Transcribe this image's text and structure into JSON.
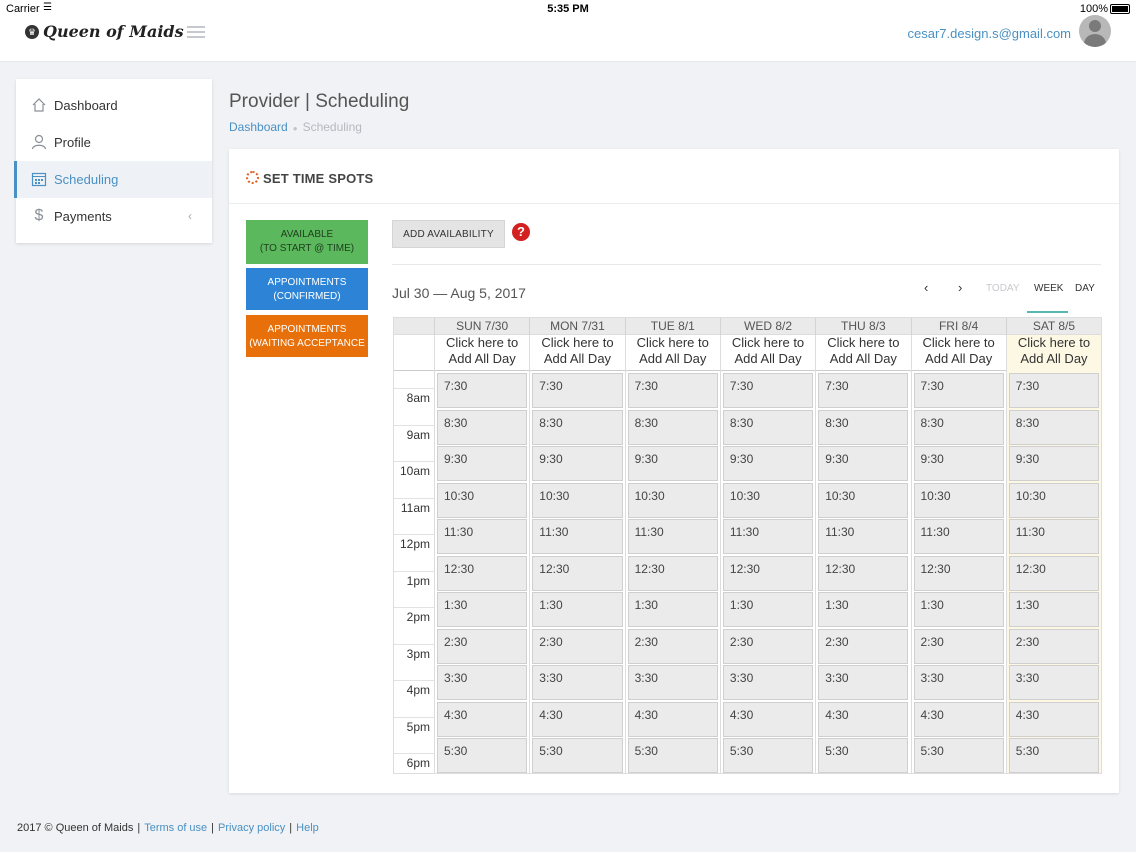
{
  "status_bar": {
    "carrier": "Carrier",
    "time": "5:35 PM",
    "battery": "100%"
  },
  "header": {
    "logo_text": "Queen of Maids",
    "user_email": "cesar7.design.s@gmail.com"
  },
  "sidebar": {
    "items": [
      {
        "label": "Dashboard",
        "icon": "home-icon"
      },
      {
        "label": "Profile",
        "icon": "user-icon"
      },
      {
        "label": "Scheduling",
        "icon": "calendar-icon",
        "active": true
      },
      {
        "label": "Payments",
        "icon": "dollar-icon"
      }
    ]
  },
  "page": {
    "title": "Provider | Scheduling",
    "breadcrumb": {
      "link": "Dashboard",
      "current": "Scheduling"
    }
  },
  "panel": {
    "title": "SET TIME SPOTS",
    "legend": {
      "available_line1": "AVAILABLE",
      "available_line2": "(TO START @ TIME)",
      "confirmed_line1": "APPOINTMENTS",
      "confirmed_line2": "(CONFIRMED)",
      "waiting_line1": "APPOINTMENTS",
      "waiting_line2": "(WAITING ACCEPTANCE"
    },
    "add_button": "ADD AVAILABILITY",
    "help_symbol": "?"
  },
  "calendar": {
    "range": "Jul 30 — Aug 5, 2017",
    "nav": {
      "prev": "‹",
      "next": "›",
      "today": "TODAY",
      "week": "WEEK",
      "day": "DAY"
    },
    "all_day_line1": "Click here to",
    "all_day_line2": "Add All Day",
    "days": [
      "SUN 7/30",
      "MON 7/31",
      "TUE 8/1",
      "WED 8/2",
      "THU 8/3",
      "FRI 8/4",
      "SAT 8/5"
    ],
    "hours": [
      "8am",
      "9am",
      "10am",
      "11am",
      "12pm",
      "1pm",
      "2pm",
      "3pm",
      "4pm",
      "5pm",
      "6pm"
    ],
    "slots": [
      "7:30",
      "8:30",
      "9:30",
      "10:30",
      "11:30",
      "12:30",
      "1:30",
      "2:30",
      "3:30",
      "4:30",
      "5:30"
    ]
  },
  "footer": {
    "copyright": "2017 © Queen of Maids",
    "terms": "Terms of use",
    "privacy": "Privacy policy",
    "help": "Help"
  },
  "colors": {
    "accent": "#4a90c2",
    "available": "#5cb85c",
    "confirmed": "#2d84d6",
    "waiting": "#e8700a",
    "today_highlight": "#fdf8e4"
  }
}
